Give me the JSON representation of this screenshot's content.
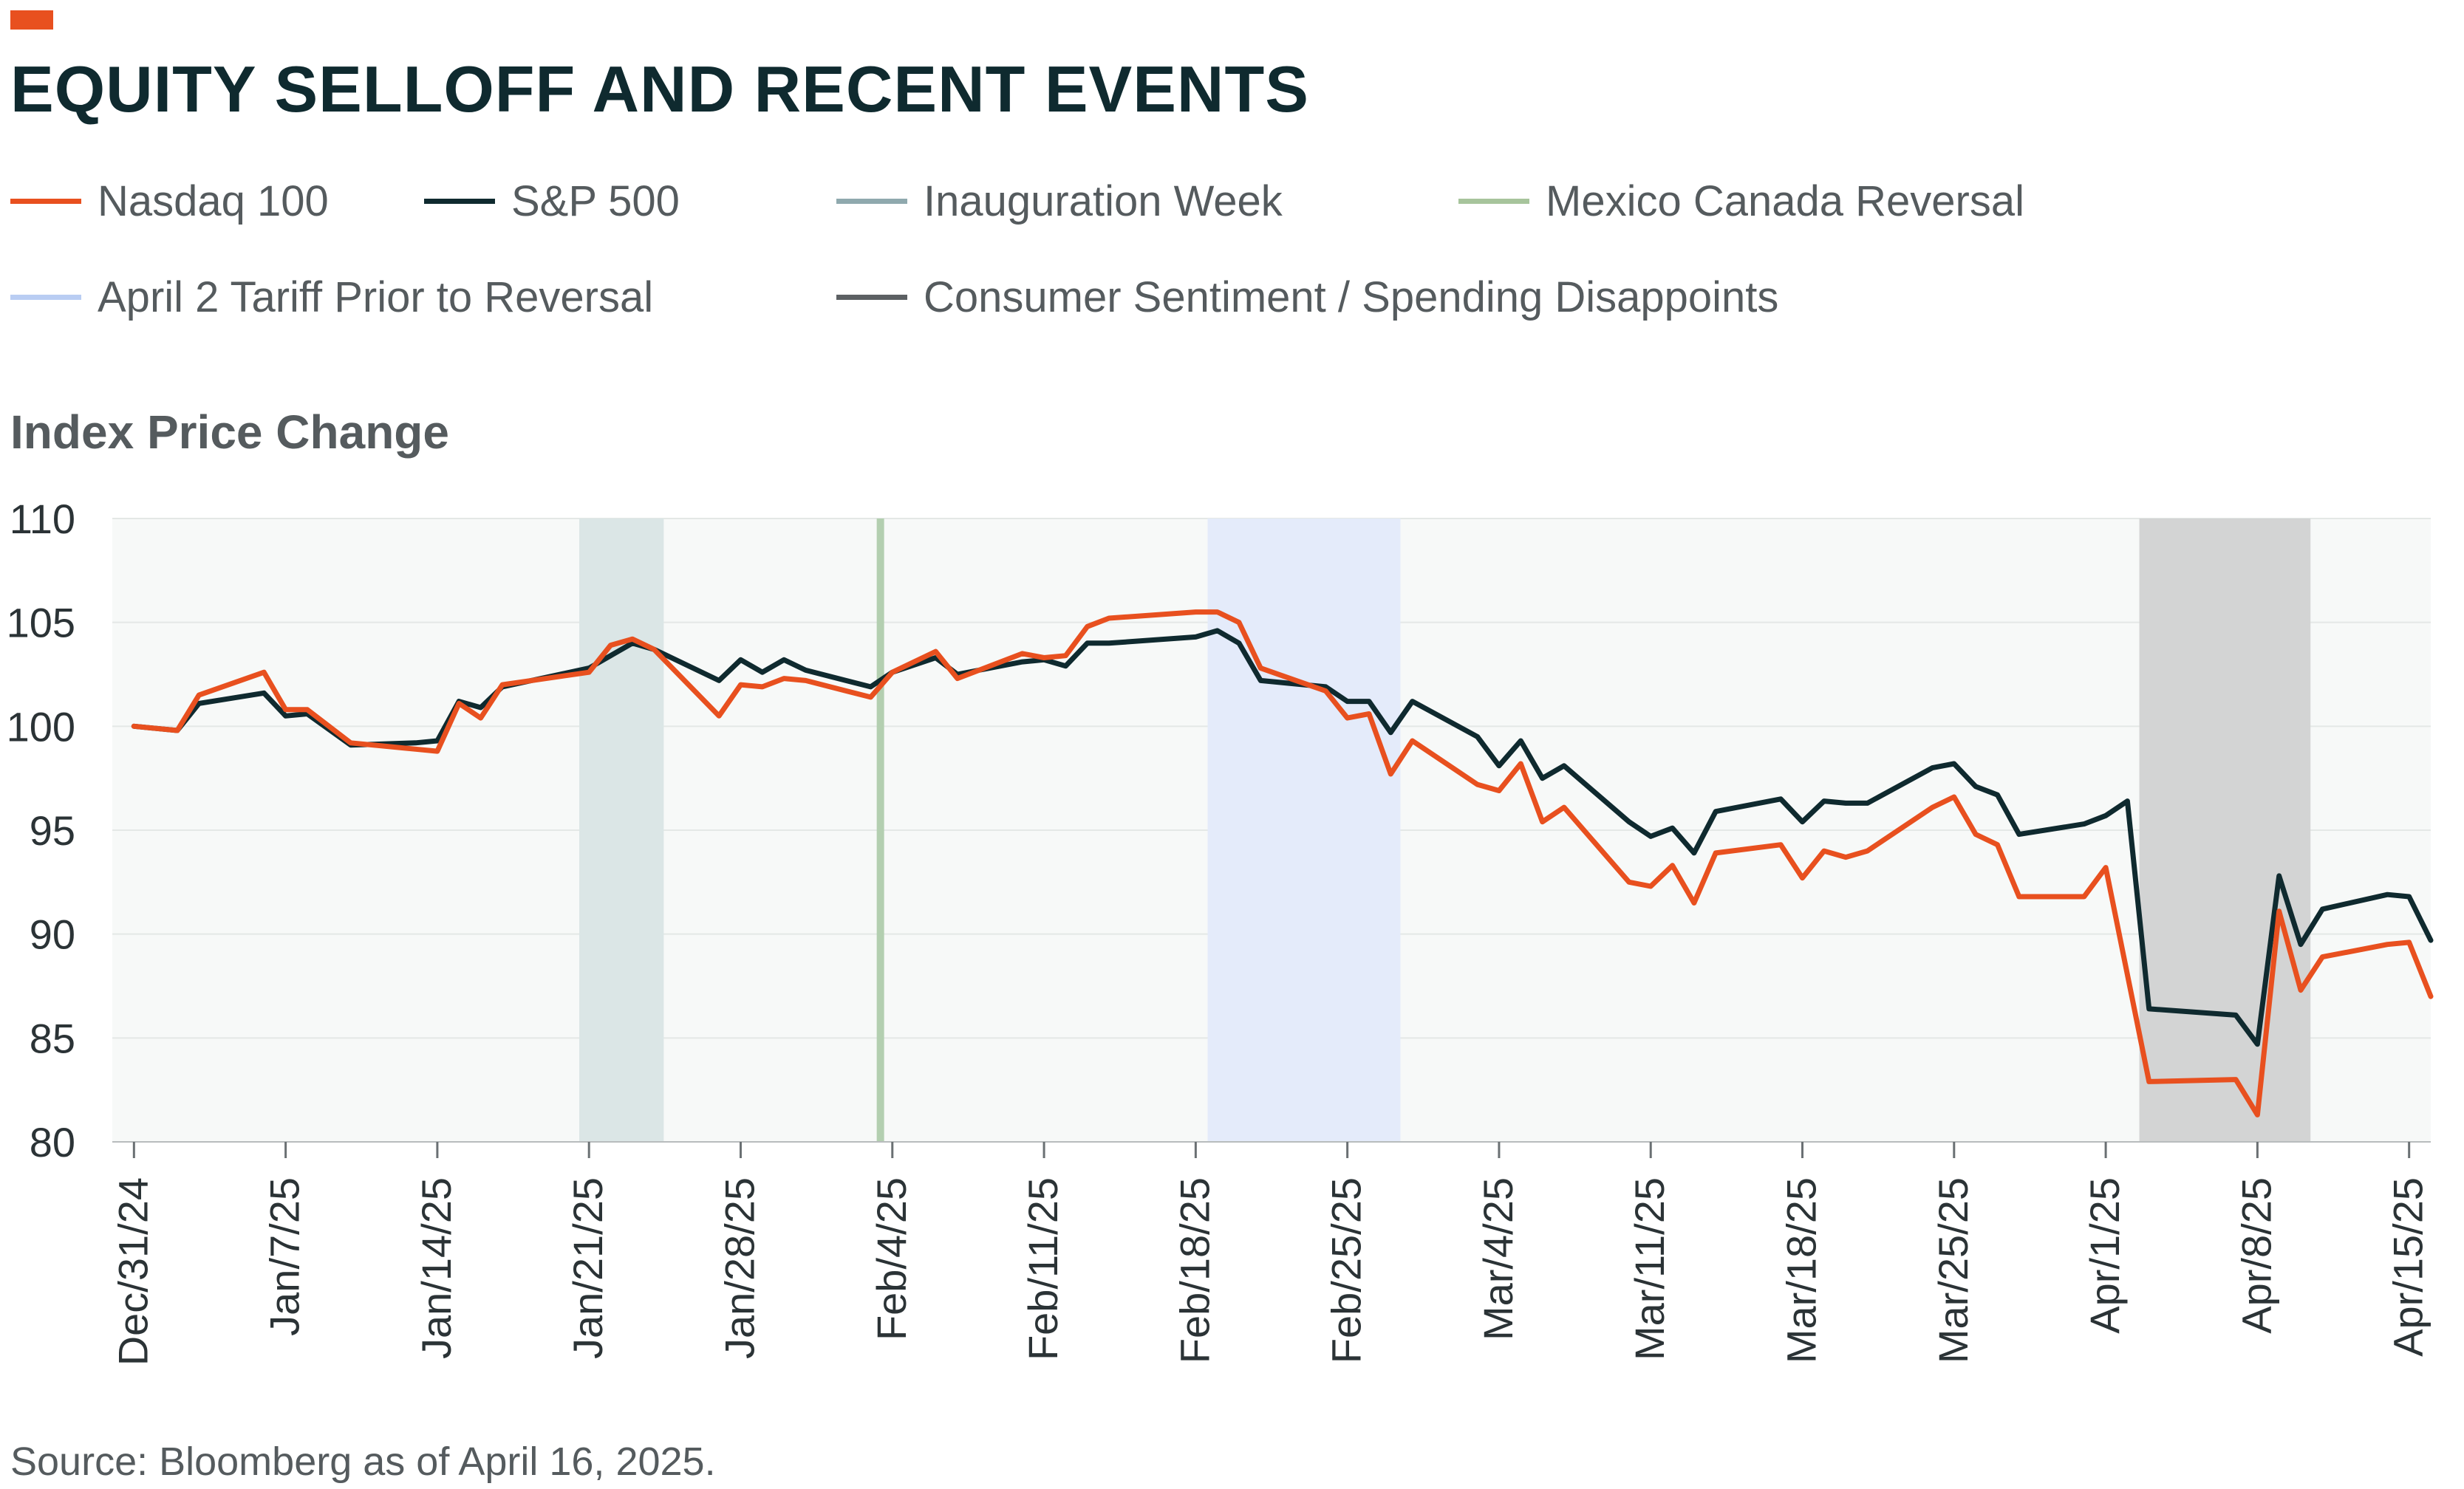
{
  "header": {
    "title": "EQUITY SELLOFF AND RECENT EVENTS"
  },
  "legend": [
    {
      "label": "Nasdaq 100",
      "color": "#e8501f"
    },
    {
      "label": "S&P 500",
      "color": "#0f2a2f"
    },
    {
      "label": "Inauguration Week",
      "color": "#8fa9ae"
    },
    {
      "label": "Mexico Canada Reversal",
      "color": "#a7c49c"
    },
    {
      "label": "April 2 Tariff Prior to Reversal",
      "color": "#b9cdf3"
    },
    {
      "label": "Consumer Sentiment / Spending Disappoints",
      "color": "#5c6063"
    }
  ],
  "axis_title": "Index Price Change",
  "source": "Source: Bloomberg as of April 16, 2025.",
  "colors": {
    "nasdaq": "#e8501f",
    "sp500": "#0f2a2f",
    "plot_background": "#f7f9f8",
    "gridline": "#e4e8e6",
    "tick_text": "#2b3336"
  },
  "chart_data": {
    "type": "line",
    "title": "EQUITY SELLOFF AND RECENT EVENTS",
    "ylabel": "Index Price Change",
    "xlabel": "",
    "ylim": [
      80,
      110
    ],
    "yticks": [
      80,
      85,
      90,
      95,
      100,
      105,
      110
    ],
    "xlim": [
      "2024-12-30",
      "2025-04-16"
    ],
    "x_tick_labels": [
      "Dec/31/24",
      "Jan/7/25",
      "Jan/14/25",
      "Jan/21/25",
      "Jan/28/25",
      "Feb/4/25",
      "Feb/11/25",
      "Feb/18/25",
      "Feb/25/25",
      "Mar/4/25",
      "Mar/11/25",
      "Mar/18/25",
      "Mar/25/25",
      "Apr/1/25",
      "Apr/8/25",
      "Apr/15/25"
    ],
    "x_tick_dates": [
      "2024-12-31",
      "2025-01-07",
      "2025-01-14",
      "2025-01-21",
      "2025-01-28",
      "2025-02-04",
      "2025-02-11",
      "2025-02-18",
      "2025-02-25",
      "2025-03-04",
      "2025-03-11",
      "2025-03-18",
      "2025-03-25",
      "2025-04-01",
      "2025-04-08",
      "2025-04-15"
    ],
    "grid": true,
    "legend_position": "top",
    "shaded_regions": [
      {
        "name": "Inauguration Week",
        "start": "2025-01-21",
        "end": "2025-01-24",
        "color": "#dbe6e6"
      },
      {
        "name": "Mexico Canada Reversal",
        "date": "2025-02-03",
        "color": "#b3cfb0"
      },
      {
        "name": "April 2 Tariff Prior to Reversal",
        "start": "2025-02-19",
        "end": "2025-02-27",
        "color": "#e4ebfa"
      },
      {
        "name": "Consumer Sentiment / Spending Disappoints",
        "start": "2025-04-03",
        "end": "2025-04-10",
        "color": "#d3d4d4"
      }
    ],
    "series": [
      {
        "name": "Nasdaq 100",
        "color": "#e8501f",
        "points": [
          [
            "2024-12-31",
            100.0
          ],
          [
            "2025-01-02",
            99.8
          ],
          [
            "2025-01-03",
            101.5
          ],
          [
            "2025-01-06",
            102.6
          ],
          [
            "2025-01-07",
            100.8
          ],
          [
            "2025-01-08",
            100.8
          ],
          [
            "2025-01-10",
            99.2
          ],
          [
            "2025-01-13",
            98.9
          ],
          [
            "2025-01-14",
            98.8
          ],
          [
            "2025-01-15",
            101.1
          ],
          [
            "2025-01-16",
            100.4
          ],
          [
            "2025-01-17",
            102.0
          ],
          [
            "2025-01-21",
            102.6
          ],
          [
            "2025-01-22",
            103.9
          ],
          [
            "2025-01-23",
            104.2
          ],
          [
            "2025-01-24",
            103.7
          ],
          [
            "2025-01-27",
            100.5
          ],
          [
            "2025-01-28",
            102.0
          ],
          [
            "2025-01-29",
            101.9
          ],
          [
            "2025-01-30",
            102.3
          ],
          [
            "2025-01-31",
            102.2
          ],
          [
            "2025-02-03",
            101.4
          ],
          [
            "2025-02-04",
            102.6
          ],
          [
            "2025-02-06",
            103.6
          ],
          [
            "2025-02-07",
            102.3
          ],
          [
            "2025-02-10",
            103.5
          ],
          [
            "2025-02-11",
            103.3
          ],
          [
            "2025-02-12",
            103.4
          ],
          [
            "2025-02-13",
            104.8
          ],
          [
            "2025-02-14",
            105.2
          ],
          [
            "2025-02-18",
            105.5
          ],
          [
            "2025-02-19",
            105.5
          ],
          [
            "2025-02-20",
            105.0
          ],
          [
            "2025-02-21",
            102.8
          ],
          [
            "2025-02-24",
            101.7
          ],
          [
            "2025-02-25",
            100.4
          ],
          [
            "2025-02-26",
            100.6
          ],
          [
            "2025-02-27",
            97.7
          ],
          [
            "2025-02-28",
            99.3
          ],
          [
            "2025-03-03",
            97.2
          ],
          [
            "2025-03-04",
            96.9
          ],
          [
            "2025-03-05",
            98.2
          ],
          [
            "2025-03-06",
            95.4
          ],
          [
            "2025-03-07",
            96.1
          ],
          [
            "2025-03-10",
            92.5
          ],
          [
            "2025-03-11",
            92.3
          ],
          [
            "2025-03-12",
            93.3
          ],
          [
            "2025-03-13",
            91.5
          ],
          [
            "2025-03-14",
            93.9
          ],
          [
            "2025-03-17",
            94.3
          ],
          [
            "2025-03-18",
            92.7
          ],
          [
            "2025-03-19",
            94.0
          ],
          [
            "2025-03-20",
            93.7
          ],
          [
            "2025-03-21",
            94.0
          ],
          [
            "2025-03-24",
            96.1
          ],
          [
            "2025-03-25",
            96.6
          ],
          [
            "2025-03-26",
            94.8
          ],
          [
            "2025-03-27",
            94.3
          ],
          [
            "2025-03-28",
            91.8
          ],
          [
            "2025-03-31",
            91.8
          ],
          [
            "2025-04-01",
            93.2
          ],
          [
            "2025-04-03",
            82.9
          ],
          [
            "2025-04-07",
            83.0
          ],
          [
            "2025-04-08",
            81.3
          ],
          [
            "2025-04-09",
            91.1
          ],
          [
            "2025-04-10",
            87.3
          ],
          [
            "2025-04-11",
            88.9
          ],
          [
            "2025-04-14",
            89.5
          ],
          [
            "2025-04-15",
            89.6
          ],
          [
            "2025-04-16",
            87.0
          ]
        ]
      },
      {
        "name": "S&P 500",
        "color": "#0f2a2f",
        "points": [
          [
            "2024-12-31",
            100.0
          ],
          [
            "2025-01-02",
            99.8
          ],
          [
            "2025-01-03",
            101.1
          ],
          [
            "2025-01-06",
            101.6
          ],
          [
            "2025-01-07",
            100.5
          ],
          [
            "2025-01-08",
            100.6
          ],
          [
            "2025-01-10",
            99.1
          ],
          [
            "2025-01-13",
            99.2
          ],
          [
            "2025-01-14",
            99.3
          ],
          [
            "2025-01-15",
            101.2
          ],
          [
            "2025-01-16",
            100.9
          ],
          [
            "2025-01-17",
            101.9
          ],
          [
            "2025-01-21",
            102.8
          ],
          [
            "2025-01-22",
            103.4
          ],
          [
            "2025-01-23",
            104.0
          ],
          [
            "2025-01-24",
            103.7
          ],
          [
            "2025-01-27",
            102.2
          ],
          [
            "2025-01-28",
            103.2
          ],
          [
            "2025-01-29",
            102.6
          ],
          [
            "2025-01-30",
            103.2
          ],
          [
            "2025-01-31",
            102.7
          ],
          [
            "2025-02-03",
            101.9
          ],
          [
            "2025-02-04",
            102.6
          ],
          [
            "2025-02-06",
            103.3
          ],
          [
            "2025-02-07",
            102.5
          ],
          [
            "2025-02-10",
            103.1
          ],
          [
            "2025-02-11",
            103.2
          ],
          [
            "2025-02-12",
            102.9
          ],
          [
            "2025-02-13",
            104.0
          ],
          [
            "2025-02-14",
            104.0
          ],
          [
            "2025-02-18",
            104.3
          ],
          [
            "2025-02-19",
            104.6
          ],
          [
            "2025-02-20",
            104.0
          ],
          [
            "2025-02-21",
            102.2
          ],
          [
            "2025-02-24",
            101.9
          ],
          [
            "2025-02-25",
            101.2
          ],
          [
            "2025-02-26",
            101.2
          ],
          [
            "2025-02-27",
            99.7
          ],
          [
            "2025-02-28",
            101.2
          ],
          [
            "2025-03-03",
            99.5
          ],
          [
            "2025-03-04",
            98.1
          ],
          [
            "2025-03-05",
            99.3
          ],
          [
            "2025-03-06",
            97.5
          ],
          [
            "2025-03-07",
            98.1
          ],
          [
            "2025-03-10",
            95.4
          ],
          [
            "2025-03-11",
            94.7
          ],
          [
            "2025-03-12",
            95.1
          ],
          [
            "2025-03-13",
            93.9
          ],
          [
            "2025-03-14",
            95.9
          ],
          [
            "2025-03-17",
            96.5
          ],
          [
            "2025-03-18",
            95.4
          ],
          [
            "2025-03-19",
            96.4
          ],
          [
            "2025-03-20",
            96.3
          ],
          [
            "2025-03-21",
            96.3
          ],
          [
            "2025-03-24",
            98.0
          ],
          [
            "2025-03-25",
            98.2
          ],
          [
            "2025-03-26",
            97.1
          ],
          [
            "2025-03-27",
            96.7
          ],
          [
            "2025-03-28",
            94.8
          ],
          [
            "2025-03-31",
            95.3
          ],
          [
            "2025-04-01",
            95.7
          ],
          [
            "2025-04-02",
            96.4
          ],
          [
            "2025-04-03",
            86.4
          ],
          [
            "2025-04-07",
            86.1
          ],
          [
            "2025-04-08",
            84.7
          ],
          [
            "2025-04-09",
            92.8
          ],
          [
            "2025-04-10",
            89.5
          ],
          [
            "2025-04-11",
            91.2
          ],
          [
            "2025-04-14",
            91.9
          ],
          [
            "2025-04-15",
            91.8
          ],
          [
            "2025-04-16",
            89.7
          ]
        ]
      }
    ]
  }
}
